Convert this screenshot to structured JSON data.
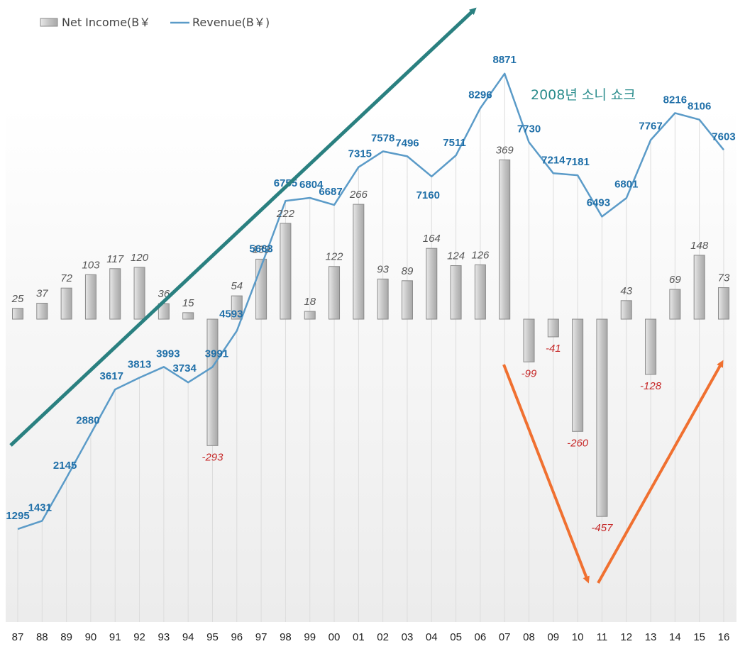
{
  "chart_data": {
    "type": "bar+line",
    "title": "",
    "categories": [
      "87",
      "88",
      "89",
      "90",
      "91",
      "92",
      "93",
      "94",
      "95",
      "96",
      "97",
      "98",
      "99",
      "00",
      "01",
      "02",
      "03",
      "04",
      "05",
      "06",
      "07",
      "08",
      "09",
      "10",
      "11",
      "12",
      "13",
      "14",
      "15",
      "16"
    ],
    "series": [
      {
        "name": "Net Income(B￥",
        "type": "bar",
        "values": [
          25,
          37,
          72,
          103,
          117,
          120,
          36,
          15,
          -293,
          54,
          139,
          222,
          18,
          122,
          266,
          93,
          89,
          164,
          124,
          126,
          369,
          -99,
          -41,
          -260,
          -457,
          43,
          -128,
          69,
          148,
          73
        ]
      },
      {
        "name": "Revenue(B￥)",
        "type": "line",
        "values": [
          1295,
          1431,
          2145,
          2880,
          3617,
          3813,
          3993,
          3734,
          3991,
          4593,
          5663,
          6755,
          6804,
          6687,
          7315,
          7578,
          7496,
          7160,
          7511,
          8296,
          8871,
          7730,
          7214,
          7181,
          6493,
          6801,
          7767,
          8216,
          8106,
          7603
        ]
      }
    ],
    "annotations": [
      {
        "text": "2008년 소니 쇼크",
        "color": "#2a8c8c"
      }
    ],
    "colors": {
      "bar_fill": "#cccccc",
      "bar_stroke": "#8a8a8a",
      "line": "#5b9bc8",
      "revenue_label": "#1f6fa8",
      "net_label": "#555555",
      "negative_label": "#c62828",
      "trend_arrow": "#2a8080",
      "shock_arrow": "#f07030"
    }
  }
}
